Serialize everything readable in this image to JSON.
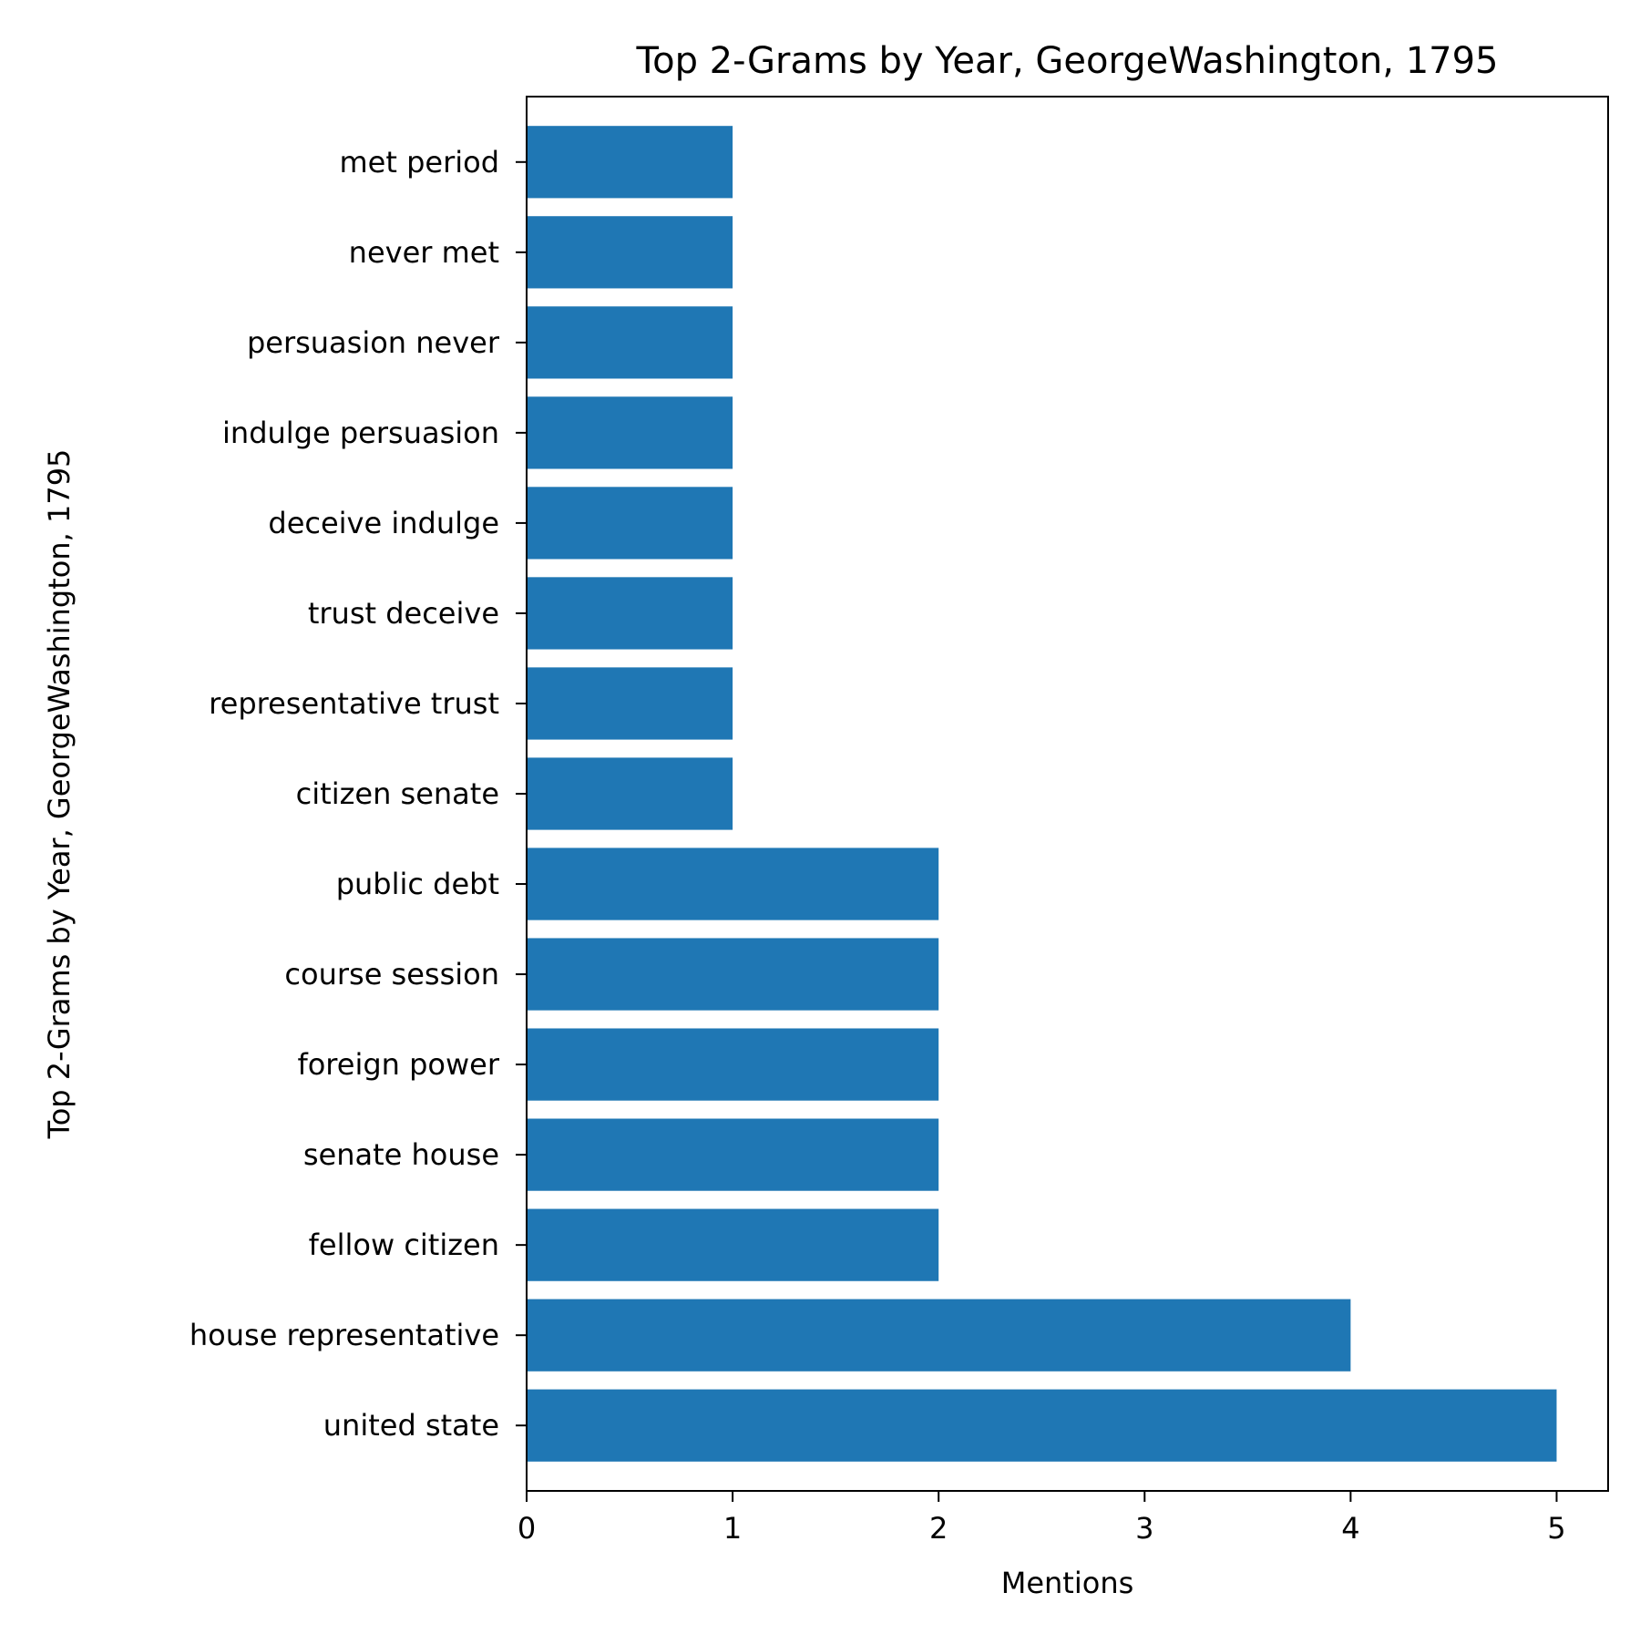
{
  "chart_data": {
    "type": "bar",
    "orientation": "horizontal",
    "title": "Top 2-Grams by Year, GeorgeWashington, 1795",
    "xlabel": "Mentions",
    "ylabel": "Top 2-Grams by Year, GeorgeWashington, 1795",
    "categories": [
      "united state",
      "house representative",
      "fellow citizen",
      "senate house",
      "foreign power",
      "course session",
      "public debt",
      "citizen senate",
      "representative trust",
      "trust deceive",
      "deceive indulge",
      "indulge persuasion",
      "persuasion never",
      "never met",
      "met period"
    ],
    "values": [
      5,
      4,
      2,
      2,
      2,
      2,
      2,
      1,
      1,
      1,
      1,
      1,
      1,
      1,
      1
    ],
    "xlim": [
      0,
      5.25
    ],
    "xticks": [
      0,
      1,
      2,
      3,
      4,
      5
    ],
    "grid": false,
    "bar_color": "#1f77b4"
  }
}
